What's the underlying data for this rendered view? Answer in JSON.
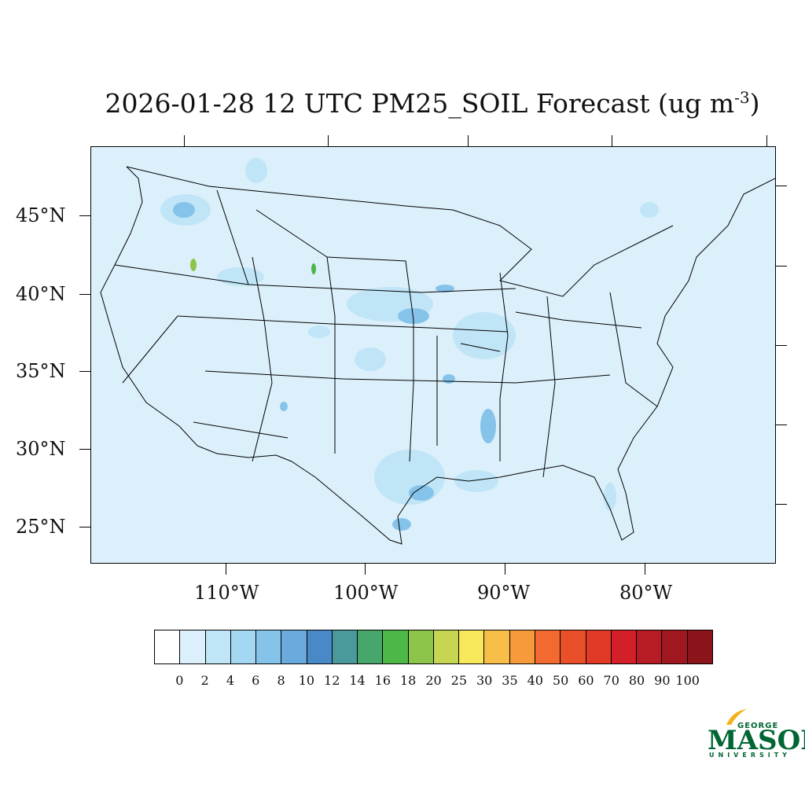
{
  "title": {
    "main": "2026-01-28 12 UTC PM25_SOIL Forecast (ug m",
    "exponent": "-3",
    "close": ")"
  },
  "axes": {
    "lat_labels": [
      "45°N",
      "40°N",
      "35°N",
      "30°N",
      "25°N"
    ],
    "lon_labels": [
      "110°W",
      "100°W",
      "90°W",
      "80°W"
    ]
  },
  "colorbar": {
    "colors": [
      "#ffffff",
      "#dcf0fb",
      "#bfe5f7",
      "#a4d8f2",
      "#86c3ea",
      "#6aaadc",
      "#4a89c7",
      "#4a9a9b",
      "#47a66b",
      "#4db748",
      "#8cc54a",
      "#c6d652",
      "#f7e85c",
      "#f7bf4a",
      "#f69a3b",
      "#f26a2f",
      "#e9502a",
      "#e03a26",
      "#d21f28",
      "#b71c24",
      "#a0181f",
      "#8b141a"
    ],
    "labels": [
      "0",
      "2",
      "4",
      "6",
      "8",
      "10",
      "12",
      "14",
      "16",
      "18",
      "20",
      "25",
      "30",
      "35",
      "40",
      "50",
      "60",
      "70",
      "80",
      "90",
      "100"
    ]
  },
  "logo": {
    "top": "GEORGE",
    "name": "MASON",
    "bottom": "UNIVERSITY"
  }
}
